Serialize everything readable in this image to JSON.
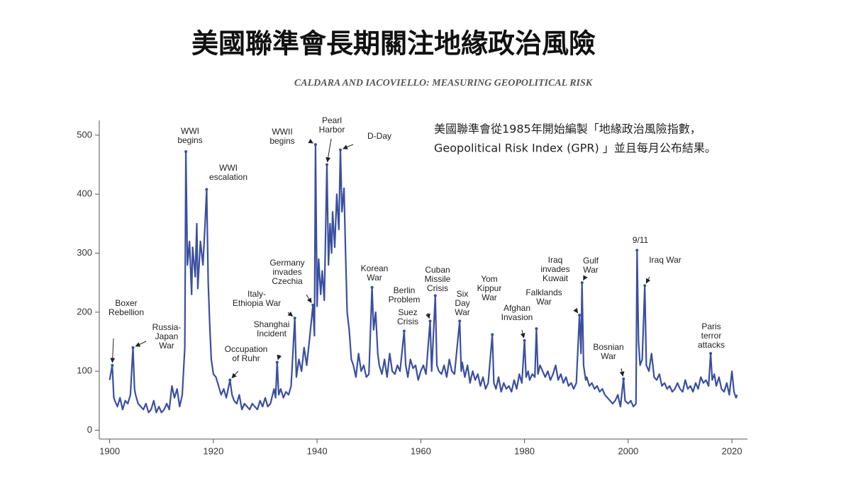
{
  "title": "美國聯準會長期關注地緣政治風險",
  "note": [
    "美國聯準會從1985年開始編製「地緣政治風險指數，",
    "Geopolitical Risk Index (GPR) 」並且每月公布結果。"
  ],
  "chart_data": {
    "type": "line",
    "subtitle": "CALDARA AND IACOVIELLO: MEASURING GEOPOLITICAL RISK",
    "xlim": [
      1898,
      2023
    ],
    "ylim": [
      -15,
      525
    ],
    "xticks": [
      1900,
      1920,
      1940,
      1960,
      1980,
      2000,
      2020
    ],
    "yticks": [
      0,
      100,
      200,
      300,
      400,
      500
    ],
    "grid": false,
    "series": [
      {
        "name": "GPR",
        "color": "#3a4fa0",
        "x": [
          1900.0,
          1900.5,
          1900.8,
          1901,
          1901.5,
          1902,
          1902.5,
          1903,
          1903.5,
          1904,
          1904.5,
          1904.8,
          1905,
          1905.5,
          1906,
          1906.5,
          1907,
          1907.5,
          1908,
          1908.5,
          1909,
          1909.5,
          1910,
          1910.5,
          1911,
          1911.5,
          1912,
          1912.5,
          1913,
          1913.5,
          1914,
          1914.5,
          1914.7,
          1915,
          1915.4,
          1915.8,
          1916,
          1916.5,
          1916.8,
          1917,
          1917.5,
          1918,
          1918.4,
          1918.7,
          1919,
          1919.3,
          1919.6,
          1920,
          1920.5,
          1921,
          1921.5,
          1922,
          1922.5,
          1923.2,
          1923.6,
          1924,
          1924.5,
          1925,
          1925.5,
          1926,
          1926.5,
          1927,
          1927.5,
          1928,
          1928.5,
          1929,
          1929.5,
          1930,
          1930.5,
          1931,
          1931.7,
          1932,
          1932.3,
          1932.6,
          1933,
          1933.5,
          1934,
          1934.5,
          1935,
          1935.7,
          1936,
          1936.5,
          1937,
          1937.5,
          1938,
          1938.5,
          1939.2,
          1939.5,
          1939.7,
          1940,
          1940.3,
          1940.7,
          1941,
          1941.4,
          1941.9,
          1942.2,
          1942.5,
          1942.8,
          1943,
          1943.4,
          1943.8,
          1944.2,
          1944.5,
          1944.8,
          1945.2,
          1945.5,
          1945.8,
          1946.2,
          1946.6,
          1947,
          1947.5,
          1948,
          1948.5,
          1949,
          1949.5,
          1950,
          1950.6,
          1950.9,
          1951.3,
          1951.7,
          1952,
          1952.5,
          1953,
          1953.5,
          1954,
          1954.5,
          1955,
          1955.5,
          1956,
          1956.8,
          1957.1,
          1957.5,
          1958,
          1958.5,
          1959,
          1959.5,
          1960,
          1960.5,
          1961,
          1961.8,
          1962.1,
          1962.8,
          1963.1,
          1963.5,
          1964,
          1964.5,
          1965,
          1965.5,
          1966,
          1966.5,
          1967.5,
          1967.8,
          1968,
          1968.5,
          1969,
          1969.5,
          1970,
          1970.5,
          1971,
          1971.5,
          1972,
          1972.5,
          1973,
          1973.8,
          1974.1,
          1974.5,
          1975,
          1975.5,
          1976,
          1976.5,
          1977,
          1977.5,
          1978,
          1978.5,
          1979,
          1979.5,
          1980,
          1980.3,
          1980.7,
          1981,
          1981.5,
          1982,
          1982.3,
          1982.6,
          1983,
          1983.5,
          1984,
          1984.5,
          1985,
          1985.5,
          1986,
          1986.5,
          1987,
          1987.5,
          1988,
          1988.5,
          1989,
          1989.5,
          1990,
          1990.6,
          1990.9,
          1991.1,
          1991.4,
          1991.8,
          1992,
          1992.5,
          1993,
          1993.5,
          1994,
          1994.5,
          1995,
          1995.5,
          1996,
          1996.5,
          1997,
          1997.5,
          1998,
          1998.5,
          1999.1,
          1999.4,
          2000,
          2000.5,
          2001,
          2001.5,
          2001.7,
          2002,
          2002.3,
          2002.7,
          2003.2,
          2003.5,
          2004,
          2004.5,
          2005,
          2005.5,
          2006,
          2006.5,
          2007,
          2007.5,
          2008,
          2008.5,
          2009,
          2009.5,
          2010,
          2010.5,
          2011,
          2011.5,
          2012,
          2012.5,
          2013,
          2013.5,
          2014,
          2014.5,
          2015,
          2015.5,
          2015.9,
          2016.2,
          2016.6,
          2017,
          2017.5,
          2018,
          2018.5,
          2019,
          2019.5,
          2020,
          2020.4,
          2020.8,
          2021
        ],
        "values": [
          85,
          110,
          55,
          50,
          40,
          55,
          35,
          50,
          45,
          60,
          140,
          70,
          60,
          45,
          40,
          35,
          45,
          30,
          35,
          50,
          30,
          40,
          30,
          35,
          45,
          35,
          75,
          55,
          70,
          40,
          60,
          140,
          472,
          280,
          320,
          230,
          310,
          260,
          350,
          240,
          320,
          280,
          350,
          408,
          250,
          180,
          120,
          95,
          90,
          75,
          60,
          70,
          55,
          85,
          60,
          50,
          45,
          60,
          35,
          45,
          40,
          35,
          45,
          40,
          35,
          50,
          40,
          55,
          40,
          45,
          70,
          55,
          115,
          60,
          70,
          55,
          65,
          60,
          75,
          190,
          90,
          120,
          100,
          140,
          110,
          150,
          212,
          160,
          484,
          210,
          290,
          230,
          270,
          220,
          450,
          280,
          350,
          300,
          370,
          310,
          400,
          340,
          475,
          370,
          410,
          300,
          200,
          170,
          120,
          110,
          90,
          130,
          100,
          110,
          90,
          95,
          242,
          170,
          200,
          130,
          110,
          95,
          120,
          90,
          130,
          100,
          95,
          110,
          100,
          168,
          110,
          90,
          120,
          105,
          110,
          85,
          100,
          110,
          95,
          185,
          100,
          228,
          110,
          100,
          95,
          110,
          90,
          120,
          100,
          95,
          185,
          100,
          115,
          90,
          110,
          80,
          100,
          85,
          95,
          75,
          90,
          70,
          80,
          162,
          80,
          70,
          90,
          65,
          80,
          70,
          75,
          65,
          85,
          70,
          95,
          80,
          152,
          90,
          100,
          85,
          95,
          90,
          172,
          95,
          110,
          100,
          90,
          100,
          85,
          95,
          110,
          85,
          95,
          80,
          90,
          75,
          80,
          70,
          80,
          195,
          130,
          250,
          110,
          85,
          90,
          75,
          80,
          70,
          75,
          65,
          70,
          60,
          55,
          50,
          45,
          50,
          60,
          40,
          87,
          50,
          45,
          50,
          40,
          45,
          305,
          150,
          110,
          120,
          245,
          110,
          100,
          130,
          90,
          85,
          95,
          75,
          80,
          70,
          75,
          65,
          70,
          80,
          70,
          65,
          85,
          70,
          75,
          65,
          80,
          70,
          90,
          80,
          85,
          75,
          130,
          85,
          95,
          75,
          90,
          70,
          65,
          80,
          60,
          100,
          65,
          55,
          60
        ]
      }
    ],
    "annotations": [
      {
        "text": [
          "Boxer",
          "Rebellion"
        ],
        "x": 1900.5,
        "y": 110
      },
      {
        "text": [
          "Russia-",
          "Japan",
          "War"
        ],
        "x": 1904.5,
        "y": 140
      },
      {
        "text": [
          "WWI",
          "begins"
        ],
        "x": 1914.7,
        "y": 472
      },
      {
        "text": [
          "WWI",
          "escalation"
        ],
        "x": 1918.7,
        "y": 408
      },
      {
        "text": [
          "Occupation",
          "of Ruhr"
        ],
        "x": 1923.2,
        "y": 85
      },
      {
        "text": [
          "Italy-",
          "Ethiopia War"
        ],
        "x": 1935.7,
        "y": 190
      },
      {
        "text": [
          "Shanghai",
          "Incident"
        ],
        "x": 1932.3,
        "y": 115
      },
      {
        "text": [
          "Germany",
          "invades",
          "Czechia"
        ],
        "x": 1939.2,
        "y": 212
      },
      {
        "text": [
          "WWII",
          "begins"
        ],
        "x": 1939.7,
        "y": 484
      },
      {
        "text": [
          "Pearl",
          "Harbor"
        ],
        "x": 1941.9,
        "y": 450
      },
      {
        "text": [
          "D-Day"
        ],
        "x": 1944.5,
        "y": 475
      },
      {
        "text": [
          "Korean",
          "War"
        ],
        "x": 1950.6,
        "y": 242
      },
      {
        "text": [
          "Berlin",
          "Problem"
        ],
        "x": 1961.8,
        "y": 185
      },
      {
        "text": [
          "Suez",
          "Crisis"
        ],
        "x": 1956.8,
        "y": 168
      },
      {
        "text": [
          "Cuban",
          "Missile",
          "Crisis"
        ],
        "x": 1962.8,
        "y": 228
      },
      {
        "text": [
          "Six",
          "Day",
          "War"
        ],
        "x": 1967.5,
        "y": 185
      },
      {
        "text": [
          "Yom",
          "Kippur",
          "War"
        ],
        "x": 1973.8,
        "y": 162
      },
      {
        "text": [
          "Afghan",
          "Invasion"
        ],
        "x": 1980.0,
        "y": 152
      },
      {
        "text": [
          "Falklands",
          "War"
        ],
        "x": 1982.3,
        "y": 172
      },
      {
        "text": [
          "Iraq",
          "invades",
          "Kuwait"
        ],
        "x": 1990.6,
        "y": 195
      },
      {
        "text": [
          "Gulf",
          "War"
        ],
        "x": 1991.1,
        "y": 250
      },
      {
        "text": [
          "Bosnian",
          "War"
        ],
        "x": 1999.1,
        "y": 87
      },
      {
        "text": [
          "9/11"
        ],
        "x": 2001.7,
        "y": 305
      },
      {
        "text": [
          "Iraq War"
        ],
        "x": 2003.2,
        "y": 245
      },
      {
        "text": [
          "Paris",
          "terror",
          "attacks"
        ],
        "x": 2015.9,
        "y": 130
      }
    ]
  }
}
